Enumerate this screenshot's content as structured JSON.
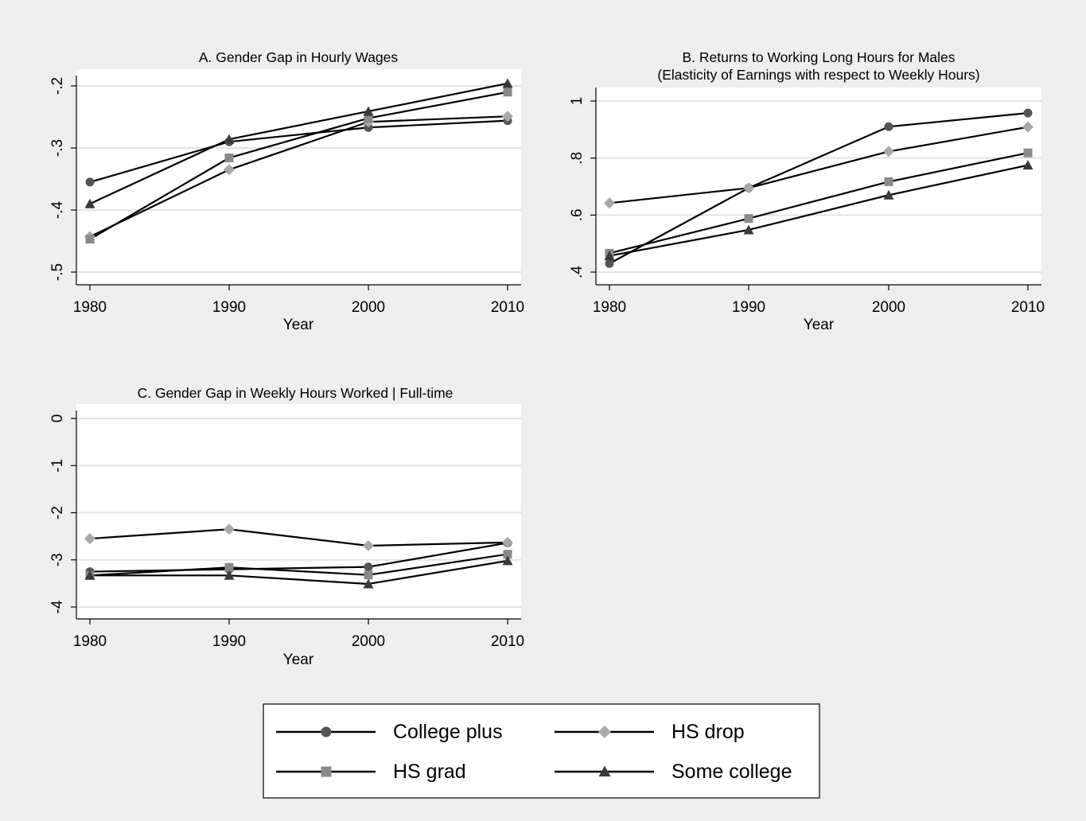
{
  "legend": {
    "position": "bottom",
    "entries": [
      {
        "label": "College plus",
        "marker": "circle",
        "color": "#555555"
      },
      {
        "label": "HS drop",
        "marker": "diamond",
        "color": "#a8a8a8"
      },
      {
        "label": "HS grad",
        "marker": "square",
        "color": "#8a8a8a"
      },
      {
        "label": "Some college",
        "marker": "triangle",
        "color": "#3a3a3a"
      }
    ]
  },
  "chart_data": [
    {
      "type": "line",
      "title": "A. Gender Gap in Hourly Wages",
      "subtitle": "",
      "xlabel": "Year",
      "ylabel": "",
      "x": [
        1980,
        1990,
        2000,
        2010
      ],
      "xticks": [
        "1980",
        "1990",
        "2000",
        "2010"
      ],
      "yticks": [
        -0.5,
        -0.4,
        -0.3,
        -0.2
      ],
      "ytick_labels": [
        "-.5",
        "-.4",
        "-.3",
        "-.2"
      ],
      "ylim": [
        -0.52,
        -0.19
      ],
      "grid": true,
      "series": [
        {
          "name": "College plus",
          "values": [
            -0.355,
            -0.29,
            -0.267,
            -0.256
          ]
        },
        {
          "name": "HS drop",
          "values": [
            -0.443,
            -0.335,
            -0.258,
            -0.249
          ]
        },
        {
          "name": "HS grad",
          "values": [
            -0.447,
            -0.316,
            -0.252,
            -0.21
          ]
        },
        {
          "name": "Some college",
          "values": [
            -0.39,
            -0.286,
            -0.241,
            -0.196
          ]
        }
      ]
    },
    {
      "type": "line",
      "title": "B. Returns to Working Long Hours for Males",
      "subtitle": "(Elasticity of Earnings with respect to Weekly Hours)",
      "xlabel": "Year",
      "ylabel": "",
      "x": [
        1980,
        1990,
        2000,
        2010
      ],
      "xticks": [
        "1980",
        "1990",
        "2000",
        "2010"
      ],
      "yticks": [
        0.4,
        0.6,
        0.8,
        1.0
      ],
      "ytick_labels": [
        ".4",
        ".6",
        ".8",
        "1"
      ],
      "ylim": [
        0.38,
        1.05
      ],
      "grid": true,
      "series": [
        {
          "name": "College plus",
          "values": [
            0.43,
            0.695,
            0.91,
            0.958
          ]
        },
        {
          "name": "HS drop",
          "values": [
            0.642,
            0.695,
            0.823,
            0.909
          ]
        },
        {
          "name": "HS grad",
          "values": [
            0.466,
            0.588,
            0.717,
            0.818
          ]
        },
        {
          "name": "Some college",
          "values": [
            0.457,
            0.548,
            0.67,
            0.775
          ]
        }
      ]
    },
    {
      "type": "line",
      "title": "C. Gender Gap in Weekly Hours Worked | Full-time",
      "subtitle": "",
      "xlabel": "Year",
      "ylabel": "",
      "x": [
        1980,
        1990,
        2000,
        2010
      ],
      "xticks": [
        "1980",
        "1990",
        "2000",
        "2010"
      ],
      "yticks": [
        -4,
        -3,
        -2,
        -1,
        0
      ],
      "ytick_labels": [
        "-4",
        "-3",
        "-2",
        "-1",
        "0"
      ],
      "ylim": [
        -4.27,
        0.27
      ],
      "grid": true,
      "series": [
        {
          "name": "College plus",
          "values": [
            -3.25,
            -3.2,
            -3.15,
            -2.64
          ]
        },
        {
          "name": "HS drop",
          "values": [
            -2.55,
            -2.35,
            -2.7,
            -2.63
          ]
        },
        {
          "name": "HS grad",
          "values": [
            -3.33,
            -3.16,
            -3.32,
            -2.88
          ]
        },
        {
          "name": "Some college",
          "values": [
            -3.33,
            -3.33,
            -3.51,
            -3.02
          ]
        }
      ]
    }
  ]
}
